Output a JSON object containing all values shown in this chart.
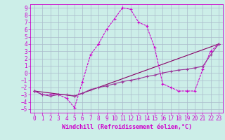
{
  "xlabel": "Windchill (Refroidissement éolien,°C)",
  "background_color": "#cceee8",
  "grid_color": "#aabbcc",
  "line_color1": "#cc00cc",
  "line_color2": "#993399",
  "line_color3": "#880066",
  "xlim": [
    -0.5,
    23.5
  ],
  "ylim": [
    -5.5,
    9.5
  ],
  "xticks": [
    0,
    1,
    2,
    3,
    4,
    5,
    6,
    7,
    8,
    9,
    10,
    11,
    12,
    13,
    14,
    15,
    16,
    17,
    18,
    19,
    20,
    21,
    22,
    23
  ],
  "yticks": [
    -5,
    -4,
    -3,
    -2,
    -1,
    0,
    1,
    2,
    3,
    4,
    5,
    6,
    7,
    8,
    9
  ],
  "curve1_x": [
    0,
    1,
    2,
    3,
    4,
    5,
    6,
    7,
    8,
    9,
    10,
    11,
    12,
    13,
    14,
    15,
    16,
    17,
    18,
    19,
    20,
    21,
    22,
    23
  ],
  "curve1_y": [
    -2.5,
    -3.0,
    -3.0,
    -3.0,
    -3.5,
    -4.8,
    -1.2,
    2.5,
    4.0,
    6.0,
    7.5,
    9.0,
    8.8,
    7.0,
    6.5,
    3.5,
    -1.5,
    -2.0,
    -2.5,
    -2.5,
    -2.5,
    0.5,
    3.0,
    4.0
  ],
  "curve2_x": [
    0,
    1,
    2,
    3,
    4,
    5,
    6,
    7,
    8,
    9,
    10,
    11,
    12,
    13,
    14,
    15,
    16,
    17,
    18,
    19,
    20,
    21,
    22,
    23
  ],
  "curve2_y": [
    -2.5,
    -3.0,
    -3.2,
    -3.0,
    -3.0,
    -3.2,
    -2.8,
    -2.3,
    -2.0,
    -1.8,
    -1.5,
    -1.2,
    -1.0,
    -0.8,
    -0.5,
    -0.3,
    0.0,
    0.2,
    0.4,
    0.5,
    0.7,
    0.9,
    2.5,
    4.0
  ],
  "curve3_x": [
    0,
    5,
    23
  ],
  "curve3_y": [
    -2.5,
    -3.2,
    4.0
  ],
  "tick_fontsize": 5.5,
  "label_fontsize": 6.0
}
